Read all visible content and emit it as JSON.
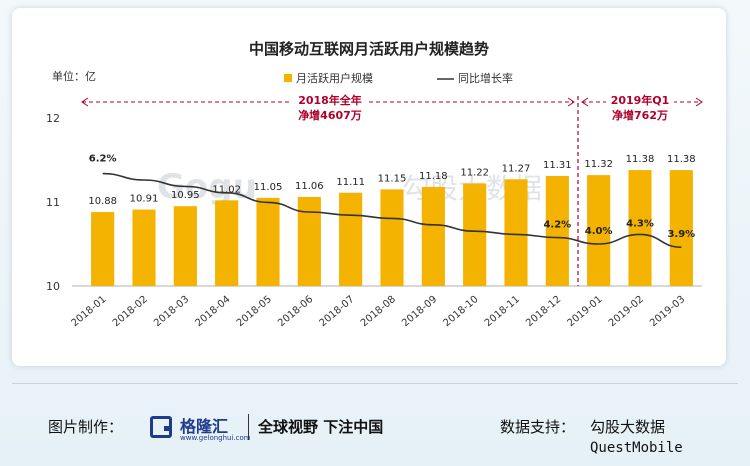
{
  "chart_data": {
    "type": "bar",
    "title": "中国移动互联网月活跃用户规模趋势",
    "unit_label": "单位：亿",
    "categories": [
      "2018-01",
      "2018-02",
      "2018-03",
      "2018-04",
      "2018-05",
      "2018-06",
      "2018-07",
      "2018-08",
      "2018-09",
      "2018-10",
      "2018-11",
      "2018-12",
      "2019-01",
      "2019-02",
      "2019-03"
    ],
    "series": [
      {
        "name": "月活跃用户规模",
        "kind": "bar",
        "color": "#f5b301",
        "values": [
          10.88,
          10.91,
          10.95,
          11.02,
          11.05,
          11.06,
          11.11,
          11.15,
          11.18,
          11.22,
          11.27,
          11.31,
          11.32,
          11.38,
          11.38
        ]
      },
      {
        "name": "同比增长率",
        "kind": "line",
        "color": "#333333",
        "values": [
          6.2,
          6.0,
          5.8,
          5.6,
          5.3,
          5.0,
          4.9,
          4.8,
          4.6,
          4.4,
          4.3,
          4.2,
          4.0,
          4.3,
          3.9
        ]
      }
    ],
    "ylim": [
      10,
      12
    ],
    "yticks": [
      "10",
      "11",
      "12"
    ],
    "rate_labels": [
      {
        "index": 0,
        "text": "6.2%"
      },
      {
        "index": 11,
        "text": "4.2%"
      },
      {
        "index": 12,
        "text": "4.0%"
      },
      {
        "index": 13,
        "text": "4.3%"
      },
      {
        "index": 14,
        "text": "3.9%"
      }
    ],
    "annotations": {
      "period_2018": [
        "2018年全年",
        "净增4607万"
      ],
      "period_2019": [
        "2019年Q1",
        "净增762万"
      ]
    },
    "legend_position": "top-center",
    "grid": false
  },
  "watermark": {
    "brand": "Gogu",
    "cn": "勾股大数据"
  },
  "footer": {
    "credit_label": "图片制作：",
    "logo_name": "格隆汇",
    "logo_url": "www.gelonghui.com",
    "slogan": "全球视野 下注中国",
    "source_label": "数据支持：",
    "source_name": "勾股大数据",
    "source_sub": "QuestMobile"
  }
}
